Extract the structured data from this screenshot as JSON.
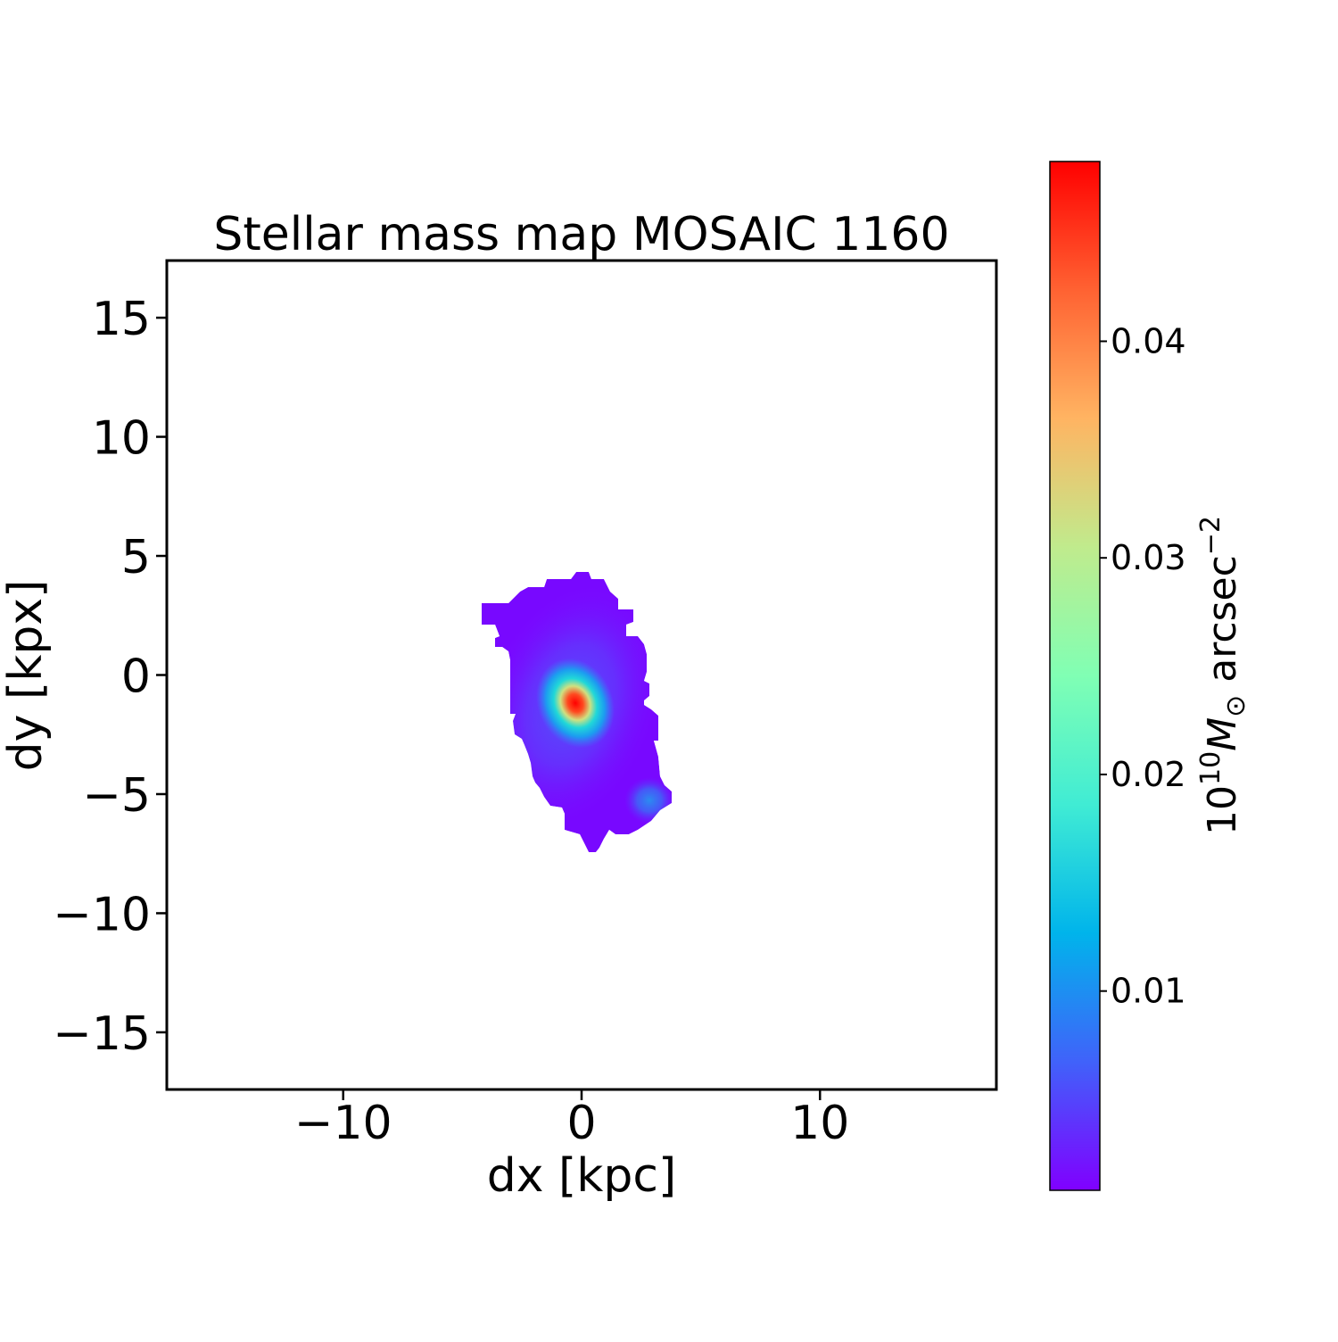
{
  "chart_data": {
    "type": "heatmap",
    "title": "Stellar mass map MOSAIC 1160",
    "xlabel": "dx [kpc]",
    "ylabel": "dy [kpx]",
    "xlim": [
      -17.4,
      17.4
    ],
    "ylim": [
      -17.4,
      17.4
    ],
    "xticks": [
      -10,
      0,
      10
    ],
    "xtick_labels": [
      "−10",
      "0",
      "10"
    ],
    "yticks": [
      15,
      10,
      5,
      0,
      -5,
      -10,
      -15
    ],
    "ytick_labels": [
      "15",
      "10",
      "5",
      "0",
      "−5",
      "−10",
      "−15"
    ],
    "colormap": "rainbow",
    "colorbar": {
      "label_base": "10",
      "label_exp": "10",
      "label_unit": "M",
      "label_sub": "⊙",
      "label_tail": " arcsec",
      "label_tail_exp": "−2",
      "range": [
        0.0008,
        0.0483
      ],
      "ticks": [
        0.01,
        0.02,
        0.03,
        0.04
      ],
      "tick_labels": [
        "0.01",
        "0.02",
        "0.03",
        "0.04"
      ]
    },
    "features": [
      {
        "name": "peak",
        "x": -0.3,
        "y": -1.2,
        "value": 0.048
      },
      {
        "name": "secondary-knot",
        "x": 2.8,
        "y": -5.3,
        "value": 0.009
      }
    ],
    "grid": false
  }
}
